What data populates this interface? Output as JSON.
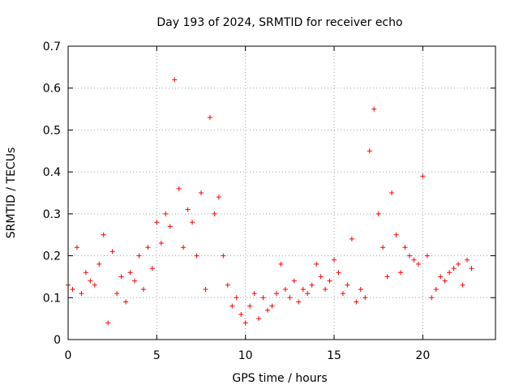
{
  "chart_data": {
    "type": "scatter",
    "title": "Day 193 of 2024, SRMTID for receiver echo",
    "xlabel": "GPS time / hours",
    "ylabel": "SRMTID / TECUs",
    "xlim": [
      0,
      24.1
    ],
    "ylim": [
      0,
      0.7
    ],
    "grid": true,
    "marker": "+",
    "color": "#ff0000",
    "x_ticks": [
      0,
      5,
      10,
      15,
      20
    ],
    "x_tick_labels": [
      "0",
      "5",
      "10",
      "15",
      "20"
    ],
    "y_ticks": [
      0,
      0.1,
      0.2,
      0.3,
      0.4,
      0.5,
      0.6,
      0.7
    ],
    "y_tick_labels": [
      "0",
      "0.1",
      "0.2",
      "0.3",
      "0.4",
      "0.5",
      "0.6",
      "0.7"
    ],
    "series": [
      {
        "name": "SRMTID",
        "x": [
          0.0,
          0.25,
          0.5,
          0.75,
          1.0,
          1.25,
          1.5,
          1.75,
          2.0,
          2.25,
          2.5,
          2.75,
          3.0,
          3.25,
          3.5,
          3.75,
          4.0,
          4.25,
          4.5,
          4.75,
          5.0,
          5.25,
          5.5,
          5.75,
          6.0,
          6.25,
          6.5,
          6.75,
          7.0,
          7.25,
          7.5,
          7.75,
          8.0,
          8.25,
          8.5,
          8.75,
          9.0,
          9.25,
          9.5,
          9.75,
          10.0,
          10.25,
          10.5,
          10.75,
          11.0,
          11.25,
          11.5,
          11.75,
          12.0,
          12.25,
          12.5,
          12.75,
          13.0,
          13.25,
          13.5,
          13.75,
          14.0,
          14.25,
          14.5,
          14.75,
          15.0,
          15.25,
          15.5,
          15.75,
          16.0,
          16.25,
          16.5,
          16.75,
          17.0,
          17.25,
          17.5,
          17.75,
          18.0,
          18.25,
          18.5,
          18.75,
          19.0,
          19.25,
          19.5,
          19.75,
          20.0,
          20.25,
          20.5,
          20.75,
          21.0,
          21.25,
          21.5,
          21.75,
          22.0,
          22.25,
          22.5,
          22.75
        ],
        "y": [
          0.13,
          0.12,
          0.22,
          0.11,
          0.16,
          0.14,
          0.13,
          0.18,
          0.25,
          0.04,
          0.21,
          0.11,
          0.15,
          0.09,
          0.16,
          0.14,
          0.2,
          0.12,
          0.22,
          0.17,
          0.28,
          0.23,
          0.3,
          0.27,
          0.62,
          0.36,
          0.22,
          0.31,
          0.28,
          0.2,
          0.35,
          0.12,
          0.53,
          0.3,
          0.34,
          0.2,
          0.13,
          0.08,
          0.1,
          0.06,
          0.04,
          0.08,
          0.11,
          0.05,
          0.1,
          0.07,
          0.08,
          0.11,
          0.18,
          0.12,
          0.1,
          0.14,
          0.09,
          0.12,
          0.11,
          0.13,
          0.18,
          0.15,
          0.12,
          0.14,
          0.19,
          0.16,
          0.11,
          0.13,
          0.24,
          0.09,
          0.12,
          0.1,
          0.45,
          0.55,
          0.3,
          0.22,
          0.15,
          0.35,
          0.25,
          0.16,
          0.22,
          0.2,
          0.19,
          0.18,
          0.39,
          0.2,
          0.1,
          0.12,
          0.15,
          0.14,
          0.16,
          0.17,
          0.18,
          0.13,
          0.19,
          0.17
        ]
      }
    ]
  }
}
